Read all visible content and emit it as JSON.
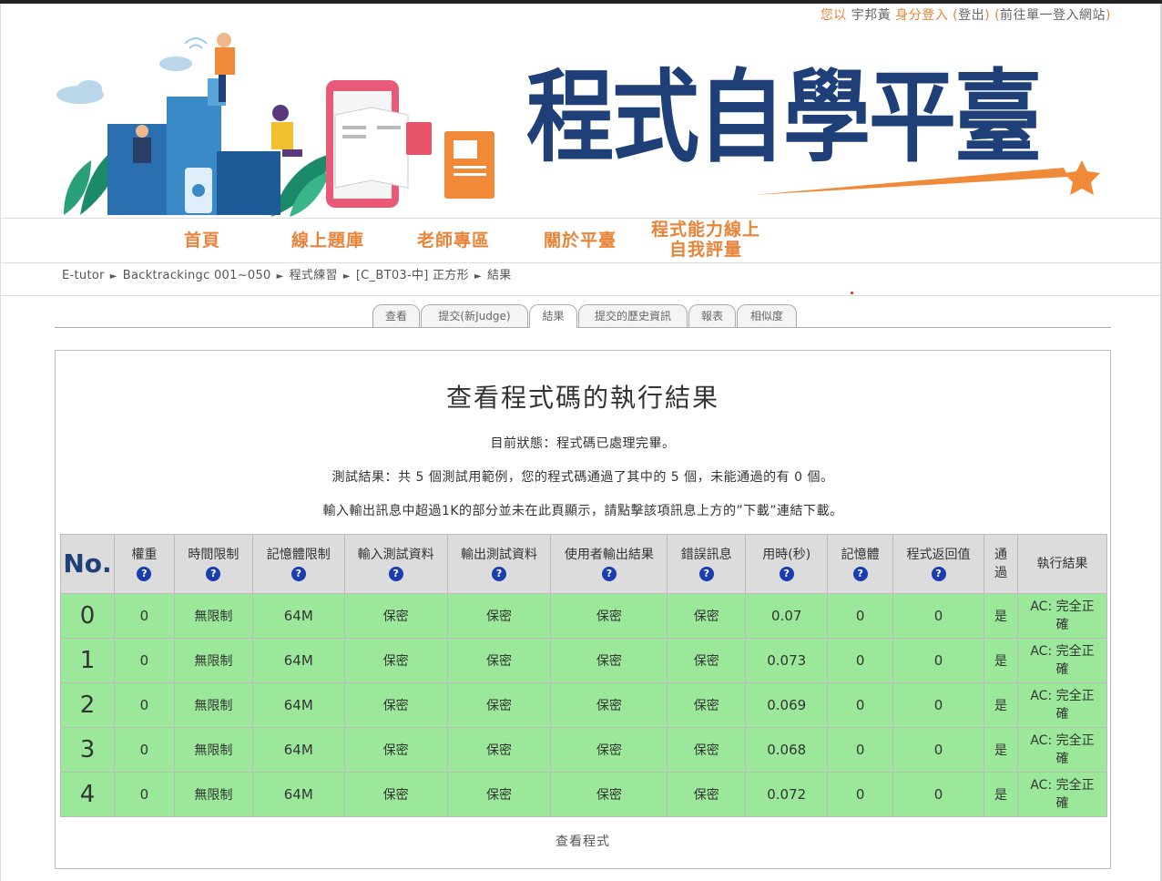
{
  "login": {
    "prefix": "您以",
    "user": "宇邦黃",
    "suffix": "身分登入",
    "logout_open": "(",
    "logout": "登出",
    "logout_close": ")",
    "sso_open": "(",
    "sso": "前往單一登入網站",
    "sso_close": ")"
  },
  "banner": {
    "title": "程式自學平臺"
  },
  "nav": {
    "items": [
      {
        "label": "首頁"
      },
      {
        "label": "線上題庫"
      },
      {
        "label": "老師專區"
      },
      {
        "label": "關於平臺"
      },
      {
        "label": "程式能力線上",
        "label2": "自我評量"
      }
    ]
  },
  "breadcrumb": {
    "items": [
      "E-tutor",
      "Backtrackingc 001~050",
      "程式練習",
      "[C_BT03-中] 正方形",
      "結果"
    ],
    "separator": "►"
  },
  "tabs": [
    {
      "label": "查看"
    },
    {
      "label": "提交(新Judge)"
    },
    {
      "label": "結果"
    },
    {
      "label": "提交的歷史資訊"
    },
    {
      "label": "報表"
    },
    {
      "label": "相似度"
    }
  ],
  "panel": {
    "title": "查看程式碼的執行結果",
    "status": "目前狀態：程式碼已處理完畢。",
    "summary": "測試結果：共 5 個測試用範例，您的程式碼通過了其中的 5 個，未能通過的有 0 個。",
    "note": "輸入輸出訊息中超過1K的部分並未在此頁顯示，請點擊該項訊息上方的”下載”連結下載。",
    "view_code": "查看程式"
  },
  "table": {
    "help_icon": "?",
    "headers": [
      "No.",
      "權重",
      "時間限制",
      "記憶體限制",
      "輸入測試資料",
      "輸出測試資料",
      "使用者輸出結果",
      "錯誤訊息",
      "用時(秒)",
      "記憶體",
      "程式返回值",
      "通過",
      "執行結果"
    ],
    "pass_header_line1": "通",
    "pass_header_line2": "過",
    "rows": [
      {
        "no": "0",
        "weight": "0",
        "time_limit": "無限制",
        "mem_limit": "64M",
        "input": "保密",
        "output": "保密",
        "user_output": "保密",
        "error": "保密",
        "time": "0.07",
        "memory": "0",
        "return": "0",
        "pass": "是",
        "verdict1": "AC: 完全正",
        "verdict2": "確"
      },
      {
        "no": "1",
        "weight": "0",
        "time_limit": "無限制",
        "mem_limit": "64M",
        "input": "保密",
        "output": "保密",
        "user_output": "保密",
        "error": "保密",
        "time": "0.073",
        "memory": "0",
        "return": "0",
        "pass": "是",
        "verdict1": "AC: 完全正",
        "verdict2": "確"
      },
      {
        "no": "2",
        "weight": "0",
        "time_limit": "無限制",
        "mem_limit": "64M",
        "input": "保密",
        "output": "保密",
        "user_output": "保密",
        "error": "保密",
        "time": "0.069",
        "memory": "0",
        "return": "0",
        "pass": "是",
        "verdict1": "AC: 完全正",
        "verdict2": "確"
      },
      {
        "no": "3",
        "weight": "0",
        "time_limit": "無限制",
        "mem_limit": "64M",
        "input": "保密",
        "output": "保密",
        "user_output": "保密",
        "error": "保密",
        "time": "0.068",
        "memory": "0",
        "return": "0",
        "pass": "是",
        "verdict1": "AC: 完全正",
        "verdict2": "確"
      },
      {
        "no": "4",
        "weight": "0",
        "time_limit": "無限制",
        "mem_limit": "64M",
        "input": "保密",
        "output": "保密",
        "user_output": "保密",
        "error": "保密",
        "time": "0.072",
        "memory": "0",
        "return": "0",
        "pass": "是",
        "verdict1": "AC: 完全正",
        "verdict2": "確"
      }
    ]
  },
  "colors": {
    "accent_orange": "#e8843a",
    "brand_navy": "#1e3f78",
    "row_green": "#9be89b",
    "header_gray": "#dcdcdc",
    "help_blue": "#1a3db0"
  }
}
